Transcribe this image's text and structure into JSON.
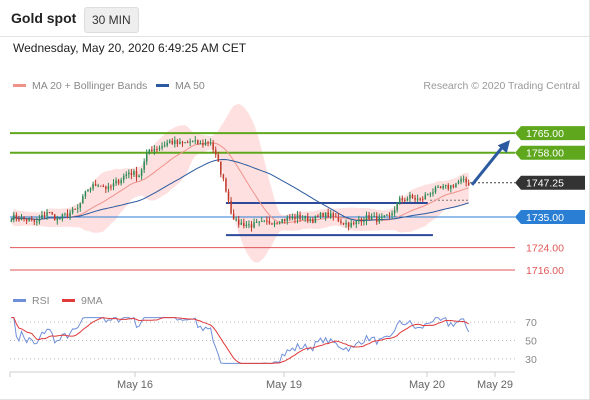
{
  "header": {
    "symbol": "Gold spot",
    "timeframe": "30 MIN",
    "timestamp": "Wednesday, May 20, 2020 6:49:25 AM CET"
  },
  "legend": {
    "items": [
      {
        "label": "MA 20 + Bollinger Bands",
        "color": "#f0928c"
      },
      {
        "label": "MA 50",
        "color": "#2c5aa0"
      }
    ],
    "credit": "Research © 2020 Trading Central"
  },
  "rsi_legend": {
    "items": [
      {
        "label": "RSI",
        "color": "#6f8fd8"
      },
      {
        "label": "9MA",
        "color": "#e03a3a"
      }
    ]
  },
  "chart_data": [
    {
      "type": "candlestick",
      "name": "price",
      "x_labels": [
        "May 16",
        "May 19",
        "May 20",
        "May 29"
      ],
      "ylim": [
        1711,
        1774
      ],
      "current_price": {
        "value": 1747.25,
        "label": "1747.25"
      },
      "levels": [
        {
          "value": 1765.0,
          "label": "1765.00",
          "kind": "resistance",
          "color": "#5fa81e"
        },
        {
          "value": 1758.0,
          "label": "1758.00",
          "kind": "resistance",
          "color": "#5fa81e"
        },
        {
          "value": 1735.0,
          "label": "1735.00",
          "kind": "pivot",
          "color": "#2a7fd4"
        },
        {
          "value": 1724.0,
          "label": "1724.00",
          "kind": "support",
          "color": "#e05656"
        },
        {
          "value": 1716.0,
          "label": "1716.00",
          "kind": "support",
          "color": "#e05656"
        }
      ],
      "colors": {
        "up": "#2e8b57",
        "down": "#c0392b",
        "ma20": "#f0928c",
        "bands": "#fde0df",
        "ma50": "#2c5aa0"
      }
    },
    {
      "type": "line",
      "name": "RSI",
      "yticks": [
        "70",
        "50",
        "30"
      ],
      "ylim": [
        20,
        80
      ],
      "series": [
        {
          "name": "RSI",
          "color": "#6f8fd8"
        },
        {
          "name": "9MA",
          "color": "#e03a3a"
        }
      ]
    }
  ]
}
